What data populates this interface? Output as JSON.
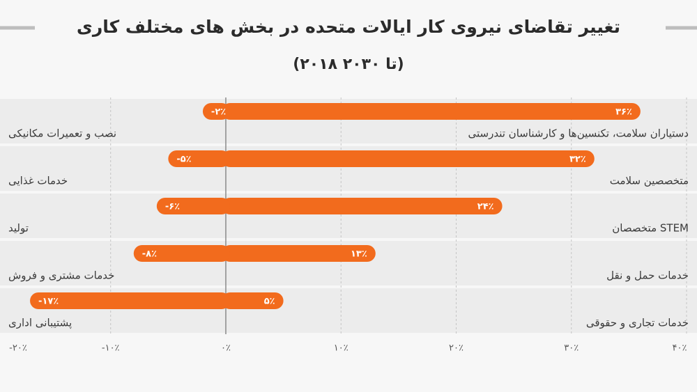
{
  "chart_data": {
    "type": "bar",
    "title": "تغییر تقاضای نیروی کار ایالات متحده در بخش های مختلف کاری",
    "subtitle": "(۲۰۱۸ تا ۲۰۳۰)",
    "color": "#f26b1d",
    "grid": true,
    "xlim": [
      -19,
      40
    ],
    "xticks": [
      {
        "value": -20,
        "label": "-۲۰٪"
      },
      {
        "value": -10,
        "label": "-۱۰٪"
      },
      {
        "value": 0,
        "label": "۰٪"
      },
      {
        "value": 10,
        "label": "۱۰٪"
      },
      {
        "value": 20,
        "label": "۲۰٪"
      },
      {
        "value": 30,
        "label": "۳۰٪"
      },
      {
        "value": 40,
        "label": "۴۰٪"
      }
    ],
    "series": [
      {
        "categories": [
          "دستیاران سلامت، تکنسین‌ها و کارشناسان تندرستی",
          "متخصصین سلامت",
          "متخصصان STEM",
          "خدمات حمل و نقل",
          "خدمات تجاری و حقوقی"
        ],
        "values": [
          36,
          32,
          24,
          13,
          5
        ],
        "value_labels": [
          "۳۶٪",
          "۳۲٪",
          "۲۴٪",
          "۱۳٪",
          "۵٪"
        ]
      },
      {
        "categories": [
          "نصب و تعمیرات مکانیکی",
          "خدمات غذایی",
          "تولید",
          "خدمات مشتری و فروش",
          "پشتیبانی اداری"
        ],
        "values": [
          -2,
          -5,
          -6,
          -8,
          -17
        ],
        "value_labels": [
          "-۲٪",
          "-۵٪",
          "-۶٪",
          "-۸٪",
          "-۱۷٪"
        ]
      }
    ]
  }
}
